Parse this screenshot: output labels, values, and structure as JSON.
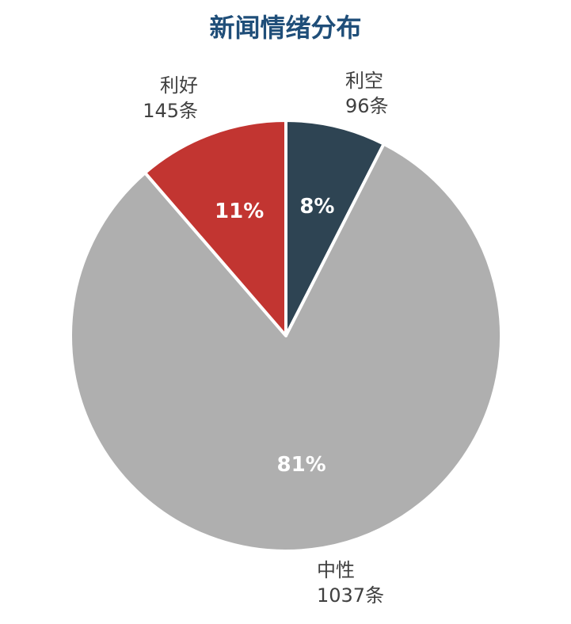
{
  "chart_data": {
    "type": "pie",
    "title": "新闻情绪分布",
    "slices": [
      {
        "name": "利空",
        "count_label": "96条",
        "value": 96,
        "percent_label": "8%",
        "color": "#2e4453"
      },
      {
        "name": "中性",
        "count_label": "1037条",
        "value": 1037,
        "percent_label": "81%",
        "color": "#afafaf"
      },
      {
        "name": "利好",
        "count_label": "145条",
        "value": 145,
        "percent_label": "11%",
        "color": "#c23531"
      }
    ],
    "start_angle_deg": 0,
    "direction": "clockwise"
  }
}
